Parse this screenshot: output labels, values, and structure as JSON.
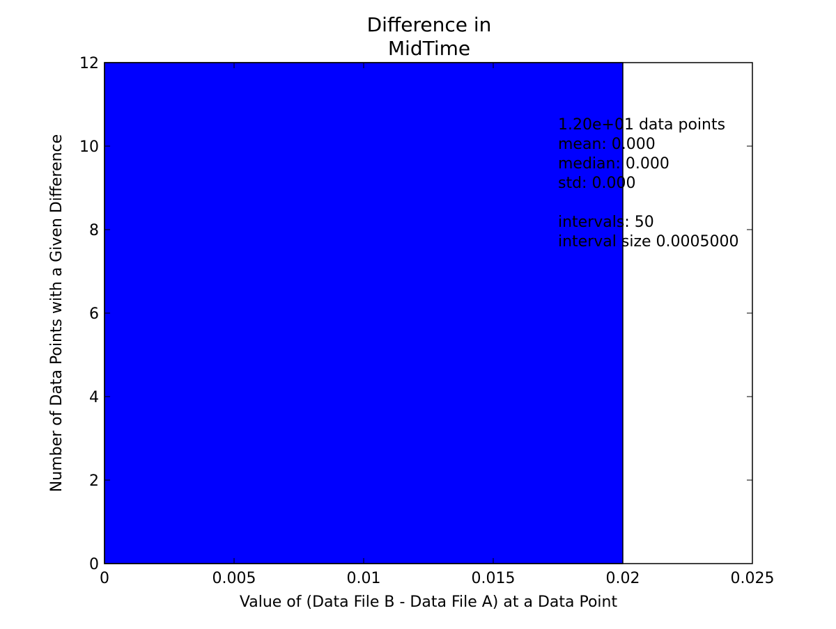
{
  "chart_data": {
    "type": "bar",
    "title_lines": [
      "Difference in",
      "MidTime"
    ],
    "xlabel": "Value of (Data File B - Data File A) at a Data Point",
    "ylabel": "Number of Data Points with a Given Difference",
    "xlim": [
      0,
      0.025
    ],
    "ylim": [
      0,
      12
    ],
    "xticks": [
      0,
      0.005,
      0.01,
      0.015,
      0.02,
      0.025
    ],
    "xtick_labels": [
      "0",
      "0.005",
      "0.01",
      "0.015",
      "0.02",
      "0.025"
    ],
    "yticks": [
      0,
      2,
      4,
      6,
      8,
      10,
      12
    ],
    "ytick_labels": [
      "0",
      "2",
      "4",
      "6",
      "8",
      "10",
      "12"
    ],
    "bars": [
      {
        "x_start": 0,
        "x_end": 0.02,
        "value": 12
      }
    ],
    "bar_color": "#0000ff",
    "grid": false,
    "annotation_lines": [
      "1.20e+01 data points",
      "mean: 0.000",
      "median: 0.000",
      "std: 0.000",
      "",
      "intervals: 50",
      "interval size 0.0005000"
    ],
    "annotation_anchor": {
      "x": 0.0175,
      "y": 10.4
    }
  }
}
